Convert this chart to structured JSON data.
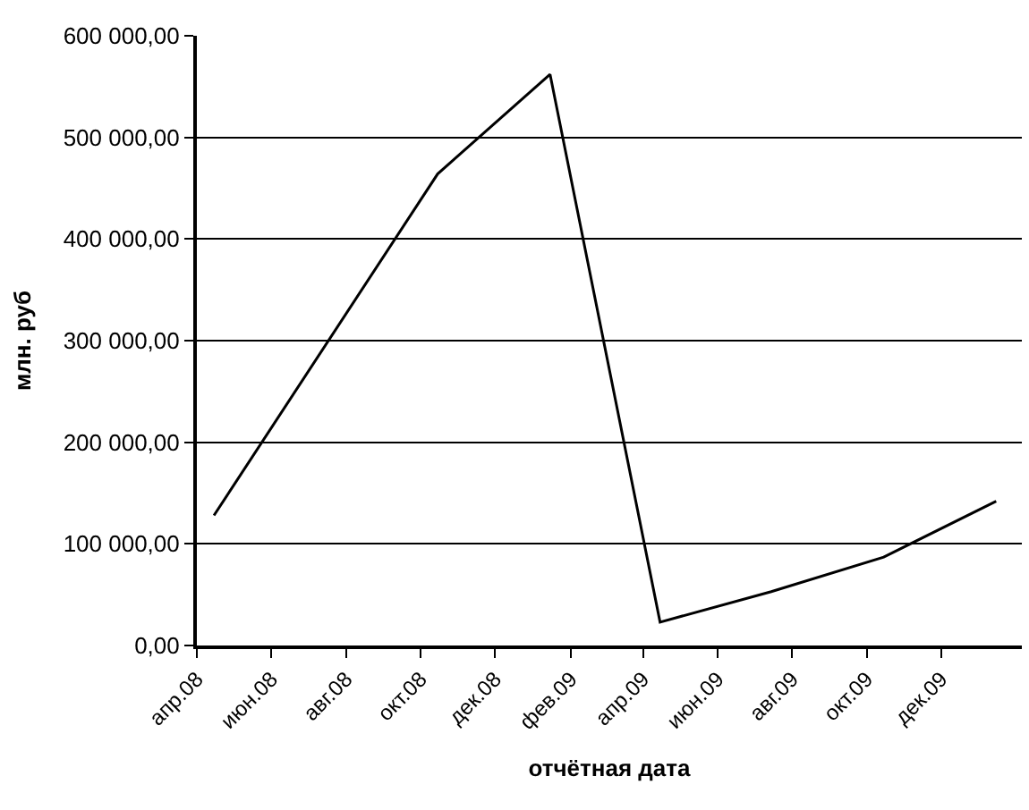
{
  "chart_data": {
    "type": "line",
    "xlabel": "отчётная дата",
    "ylabel": "млн. руб",
    "x": [
      "2008-04-15",
      "2008-10-15",
      "2009-01-15",
      "2009-04-15",
      "2009-07-15",
      "2009-10-15",
      "2010-01-15"
    ],
    "series": [
      {
        "color": "#000000",
        "values": [
          128000,
          464000,
          562000,
          23000,
          53000,
          87000,
          142000
        ]
      }
    ],
    "xlim": [
      "2008-04-01",
      "2010-02-05"
    ],
    "xticks": [
      {
        "value": "2008-04-01",
        "label": "апр.08"
      },
      {
        "value": "2008-06-01",
        "label": "июн.08"
      },
      {
        "value": "2008-08-01",
        "label": "авг.08"
      },
      {
        "value": "2008-10-01",
        "label": "окт.08"
      },
      {
        "value": "2008-12-01",
        "label": "дек.08"
      },
      {
        "value": "2009-02-01",
        "label": "фев.09"
      },
      {
        "value": "2009-04-01",
        "label": "апр.09"
      },
      {
        "value": "2009-06-01",
        "label": "июн.09"
      },
      {
        "value": "2009-08-01",
        "label": "авг.09"
      },
      {
        "value": "2009-10-01",
        "label": "окт.09"
      },
      {
        "value": "2009-12-01",
        "label": "дек.09"
      }
    ],
    "ylim": [
      0,
      600000
    ],
    "yticks": [
      {
        "value": 0,
        "label": "0,00"
      },
      {
        "value": 100000,
        "label": "100 000,00"
      },
      {
        "value": 200000,
        "label": "200 000,00"
      },
      {
        "value": 300000,
        "label": "300 000,00"
      },
      {
        "value": 400000,
        "label": "400 000,00"
      },
      {
        "value": 500000,
        "label": "500 000,00"
      },
      {
        "value": 600000,
        "label": "600 000,00"
      }
    ],
    "grid": "y",
    "marker": "none",
    "line_style": "solid"
  }
}
